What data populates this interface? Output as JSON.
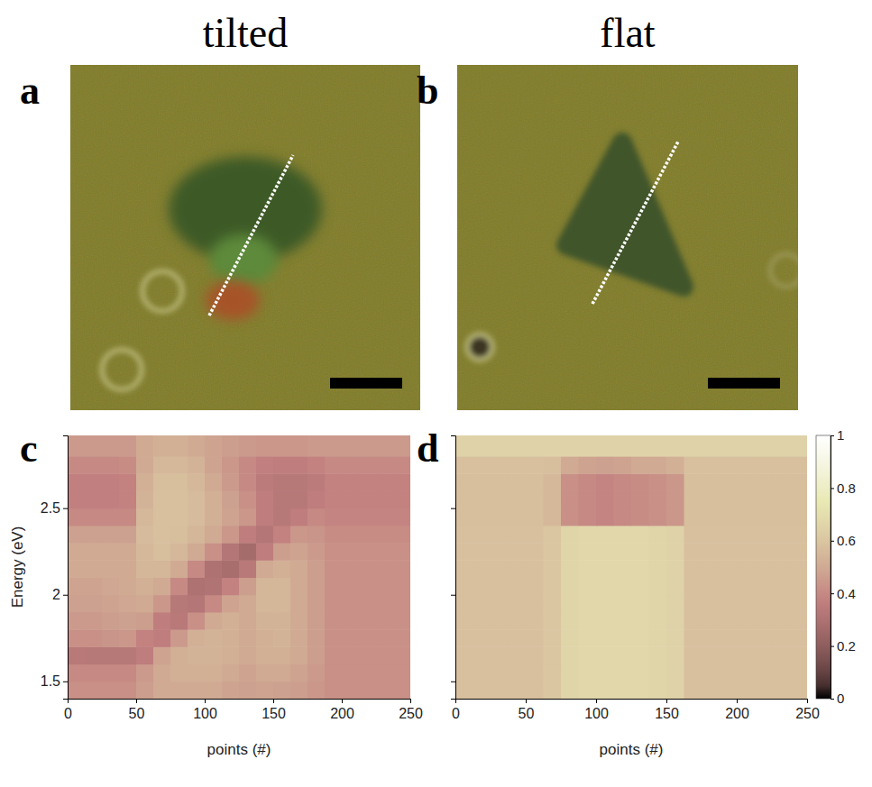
{
  "chart_data": [
    {
      "type": "image",
      "panel": "a",
      "title": "tilted"
    },
    {
      "type": "image",
      "panel": "b",
      "title": "flat"
    },
    {
      "type": "heatmap",
      "panel": "c",
      "x_label": "points (#)",
      "y_label": "Energy (eV)",
      "xlim": [
        0,
        250
      ],
      "ylim": [
        1.4,
        2.92
      ],
      "xticks": [
        0,
        50,
        100,
        150,
        200,
        250
      ],
      "yticks": [
        1.5,
        2,
        2.5
      ],
      "x_edges": [
        0,
        12.5,
        25,
        37.5,
        50,
        62.5,
        75,
        87.5,
        100,
        112.5,
        125,
        137.5,
        150,
        162.5,
        175,
        187.5,
        200,
        212.5,
        225,
        237.5,
        250
      ],
      "y_edges": [
        1.4,
        1.5,
        1.6,
        1.7,
        1.8,
        1.9,
        2.0,
        2.1,
        2.2,
        2.3,
        2.4,
        2.5,
        2.6,
        2.7,
        2.8,
        2.92
      ],
      "colorbar_range": [
        0,
        1
      ],
      "cells": [
        [
          0.42,
          0.42,
          0.42,
          0.42,
          0.46,
          0.5,
          0.5,
          0.5,
          0.5,
          0.48,
          0.47,
          0.48,
          0.47,
          0.46,
          0.44,
          0.42,
          0.42,
          0.42,
          0.42,
          0.42
        ],
        [
          0.4,
          0.4,
          0.4,
          0.4,
          0.45,
          0.5,
          0.52,
          0.52,
          0.52,
          0.5,
          0.48,
          0.5,
          0.5,
          0.48,
          0.45,
          0.42,
          0.42,
          0.42,
          0.42,
          0.42
        ],
        [
          0.34,
          0.33,
          0.33,
          0.33,
          0.36,
          0.48,
          0.52,
          0.53,
          0.53,
          0.52,
          0.5,
          0.52,
          0.52,
          0.5,
          0.46,
          0.42,
          0.42,
          0.42,
          0.42,
          0.42
        ],
        [
          0.42,
          0.42,
          0.43,
          0.44,
          0.38,
          0.36,
          0.45,
          0.52,
          0.53,
          0.52,
          0.5,
          0.52,
          0.53,
          0.5,
          0.46,
          0.42,
          0.42,
          0.42,
          0.42,
          0.42
        ],
        [
          0.45,
          0.45,
          0.46,
          0.47,
          0.46,
          0.36,
          0.34,
          0.42,
          0.5,
          0.52,
          0.5,
          0.53,
          0.53,
          0.5,
          0.46,
          0.42,
          0.42,
          0.42,
          0.42,
          0.42
        ],
        [
          0.47,
          0.47,
          0.48,
          0.49,
          0.5,
          0.44,
          0.33,
          0.32,
          0.4,
          0.48,
          0.5,
          0.54,
          0.54,
          0.5,
          0.46,
          0.42,
          0.42,
          0.42,
          0.42,
          0.42
        ],
        [
          0.48,
          0.48,
          0.49,
          0.5,
          0.52,
          0.5,
          0.4,
          0.3,
          0.31,
          0.38,
          0.46,
          0.54,
          0.54,
          0.5,
          0.46,
          0.42,
          0.42,
          0.42,
          0.42,
          0.42
        ],
        [
          0.5,
          0.5,
          0.5,
          0.5,
          0.54,
          0.54,
          0.5,
          0.4,
          0.3,
          0.28,
          0.34,
          0.5,
          0.52,
          0.5,
          0.46,
          0.42,
          0.42,
          0.42,
          0.42,
          0.42
        ],
        [
          0.5,
          0.5,
          0.5,
          0.5,
          0.55,
          0.57,
          0.55,
          0.5,
          0.42,
          0.32,
          0.27,
          0.36,
          0.46,
          0.48,
          0.45,
          0.42,
          0.42,
          0.42,
          0.42,
          0.42
        ],
        [
          0.47,
          0.47,
          0.47,
          0.47,
          0.56,
          0.58,
          0.57,
          0.54,
          0.5,
          0.44,
          0.36,
          0.32,
          0.38,
          0.44,
          0.43,
          0.41,
          0.41,
          0.41,
          0.41,
          0.41
        ],
        [
          0.4,
          0.4,
          0.4,
          0.4,
          0.55,
          0.58,
          0.58,
          0.56,
          0.52,
          0.48,
          0.44,
          0.36,
          0.33,
          0.36,
          0.4,
          0.39,
          0.39,
          0.39,
          0.39,
          0.39
        ],
        [
          0.37,
          0.37,
          0.37,
          0.38,
          0.53,
          0.58,
          0.58,
          0.56,
          0.52,
          0.47,
          0.42,
          0.36,
          0.33,
          0.33,
          0.36,
          0.38,
          0.38,
          0.38,
          0.38,
          0.38
        ],
        [
          0.37,
          0.37,
          0.37,
          0.38,
          0.52,
          0.57,
          0.57,
          0.55,
          0.5,
          0.45,
          0.4,
          0.35,
          0.33,
          0.33,
          0.35,
          0.38,
          0.38,
          0.38,
          0.38,
          0.38
        ],
        [
          0.4,
          0.4,
          0.4,
          0.41,
          0.5,
          0.55,
          0.55,
          0.53,
          0.48,
          0.44,
          0.4,
          0.37,
          0.36,
          0.36,
          0.38,
          0.4,
          0.4,
          0.4,
          0.4,
          0.4
        ],
        [
          0.45,
          0.45,
          0.45,
          0.45,
          0.5,
          0.52,
          0.52,
          0.5,
          0.48,
          0.46,
          0.45,
          0.44,
          0.44,
          0.44,
          0.45,
          0.45,
          0.45,
          0.45,
          0.45,
          0.45
        ]
      ]
    },
    {
      "type": "heatmap",
      "panel": "d",
      "x_label": "points (#)",
      "xlim": [
        0,
        250
      ],
      "ylim": [
        1.4,
        2.92
      ],
      "xticks": [
        0,
        50,
        100,
        150,
        200,
        250
      ],
      "yticks": [
        1.5,
        2,
        2.5
      ],
      "tick_labels": "x",
      "x_edges": [
        0,
        12.5,
        25,
        37.5,
        50,
        62.5,
        75,
        87.5,
        100,
        112.5,
        125,
        137.5,
        150,
        162.5,
        175,
        187.5,
        200,
        212.5,
        225,
        237.5,
        250
      ],
      "y_edges": [
        1.4,
        1.5,
        1.6,
        1.7,
        1.8,
        1.9,
        2.0,
        2.1,
        2.2,
        2.3,
        2.4,
        2.5,
        2.6,
        2.7,
        2.8,
        2.92
      ],
      "colorbar_range": [
        0,
        1
      ],
      "colorbar_ticks": [
        0,
        0.2,
        0.4,
        0.6,
        0.8,
        1
      ],
      "cells": [
        [
          0.58,
          0.58,
          0.58,
          0.58,
          0.58,
          0.6,
          0.66,
          0.67,
          0.67,
          0.67,
          0.67,
          0.66,
          0.65,
          0.58,
          0.58,
          0.58,
          0.58,
          0.58,
          0.58,
          0.58
        ],
        [
          0.58,
          0.58,
          0.58,
          0.58,
          0.58,
          0.6,
          0.66,
          0.67,
          0.67,
          0.67,
          0.67,
          0.66,
          0.65,
          0.58,
          0.58,
          0.58,
          0.58,
          0.58,
          0.58,
          0.58
        ],
        [
          0.58,
          0.58,
          0.58,
          0.58,
          0.58,
          0.6,
          0.66,
          0.67,
          0.67,
          0.67,
          0.67,
          0.66,
          0.65,
          0.58,
          0.58,
          0.58,
          0.58,
          0.58,
          0.58,
          0.58
        ],
        [
          0.58,
          0.58,
          0.58,
          0.58,
          0.58,
          0.6,
          0.66,
          0.67,
          0.67,
          0.67,
          0.67,
          0.66,
          0.65,
          0.58,
          0.58,
          0.58,
          0.58,
          0.58,
          0.58,
          0.58
        ],
        [
          0.58,
          0.58,
          0.58,
          0.58,
          0.58,
          0.6,
          0.66,
          0.67,
          0.67,
          0.67,
          0.67,
          0.66,
          0.65,
          0.58,
          0.58,
          0.58,
          0.58,
          0.58,
          0.58,
          0.58
        ],
        [
          0.58,
          0.58,
          0.58,
          0.58,
          0.58,
          0.6,
          0.66,
          0.67,
          0.67,
          0.67,
          0.67,
          0.66,
          0.65,
          0.58,
          0.58,
          0.58,
          0.58,
          0.58,
          0.58,
          0.58
        ],
        [
          0.58,
          0.58,
          0.58,
          0.58,
          0.58,
          0.6,
          0.66,
          0.67,
          0.67,
          0.67,
          0.67,
          0.66,
          0.65,
          0.58,
          0.58,
          0.58,
          0.58,
          0.58,
          0.58,
          0.58
        ],
        [
          0.58,
          0.58,
          0.58,
          0.58,
          0.58,
          0.6,
          0.66,
          0.67,
          0.67,
          0.67,
          0.67,
          0.66,
          0.65,
          0.58,
          0.58,
          0.58,
          0.58,
          0.58,
          0.58,
          0.58
        ],
        [
          0.58,
          0.58,
          0.58,
          0.58,
          0.58,
          0.6,
          0.66,
          0.67,
          0.67,
          0.67,
          0.67,
          0.66,
          0.65,
          0.58,
          0.58,
          0.58,
          0.58,
          0.58,
          0.58,
          0.58
        ],
        [
          0.58,
          0.58,
          0.58,
          0.58,
          0.58,
          0.6,
          0.66,
          0.67,
          0.67,
          0.67,
          0.67,
          0.66,
          0.65,
          0.58,
          0.58,
          0.58,
          0.58,
          0.58,
          0.58,
          0.58
        ],
        [
          0.57,
          0.57,
          0.57,
          0.57,
          0.57,
          0.55,
          0.42,
          0.4,
          0.39,
          0.4,
          0.41,
          0.42,
          0.44,
          0.57,
          0.57,
          0.57,
          0.57,
          0.57,
          0.57,
          0.57
        ],
        [
          0.57,
          0.57,
          0.57,
          0.57,
          0.57,
          0.55,
          0.42,
          0.4,
          0.39,
          0.4,
          0.41,
          0.42,
          0.44,
          0.57,
          0.57,
          0.57,
          0.57,
          0.57,
          0.57,
          0.57
        ],
        [
          0.57,
          0.57,
          0.57,
          0.57,
          0.57,
          0.55,
          0.42,
          0.4,
          0.39,
          0.4,
          0.41,
          0.42,
          0.44,
          0.57,
          0.57,
          0.57,
          0.57,
          0.57,
          0.57,
          0.57
        ],
        [
          0.58,
          0.58,
          0.58,
          0.58,
          0.58,
          0.57,
          0.5,
          0.48,
          0.47,
          0.48,
          0.5,
          0.5,
          0.52,
          0.58,
          0.58,
          0.58,
          0.58,
          0.58,
          0.58,
          0.58
        ],
        [
          0.65,
          0.65,
          0.65,
          0.65,
          0.65,
          0.65,
          0.65,
          0.65,
          0.65,
          0.65,
          0.65,
          0.65,
          0.65,
          0.65,
          0.65,
          0.65,
          0.65,
          0.65,
          0.65,
          0.65
        ]
      ]
    }
  ]
}
